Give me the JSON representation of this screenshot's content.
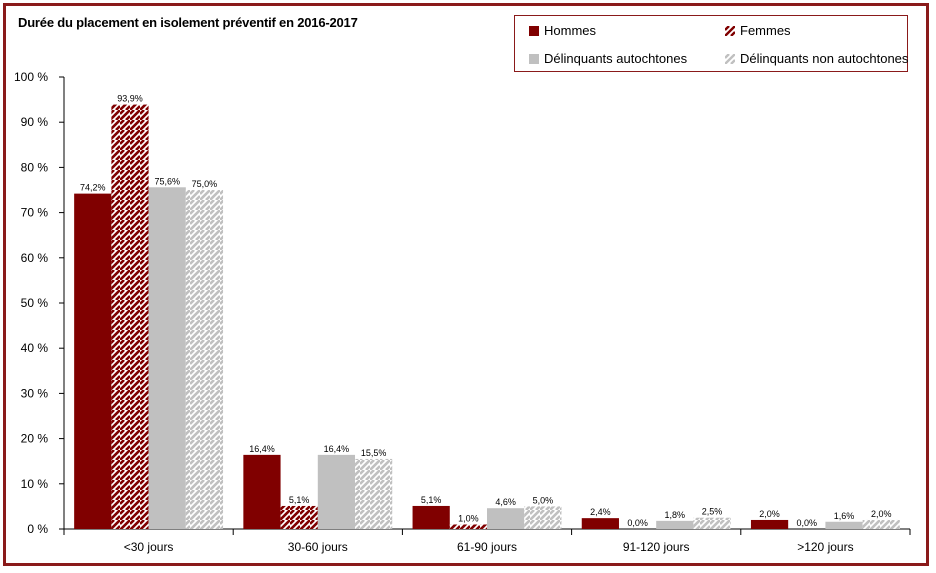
{
  "chart_data": {
    "type": "bar",
    "title": "Durée du placement en isolement préventif en 2016-2017",
    "categories": [
      "<30 jours",
      "30-60 jours",
      "61-90 jours",
      "91-120 jours",
      ">120 jours"
    ],
    "ylim": [
      0,
      100
    ],
    "yticks": [
      "0 %",
      "10 %",
      "20 %",
      "30 %",
      "40 %",
      "50 %",
      "60 %",
      "70 %",
      "80 %",
      "90 %",
      "100 %"
    ],
    "grid": false,
    "legend_position": "top-right",
    "series": [
      {
        "name": "Hommes",
        "values": [
          74.2,
          16.4,
          5.1,
          2.4,
          2.0
        ],
        "labels": [
          "74,2%",
          "16,4%",
          "5,1%",
          "2,4%",
          "2,0%"
        ],
        "color": "#800000",
        "pattern": "solid"
      },
      {
        "name": "Femmes",
        "values": [
          93.9,
          5.1,
          1.0,
          0.0,
          0.0
        ],
        "labels": [
          "93,9%",
          "5,1%",
          "1,0%",
          "0,0%",
          "0,0%"
        ],
        "color": "#800000",
        "pattern": "hatched"
      },
      {
        "name": "Délinquants autochtones",
        "values": [
          75.6,
          16.4,
          4.6,
          1.8,
          1.6
        ],
        "labels": [
          "75,6%",
          "16,4%",
          "4,6%",
          "1,8%",
          "1,6%"
        ],
        "color": "#c0c0c0",
        "pattern": "solid"
      },
      {
        "name": "Délinquants non autochtones",
        "values": [
          75.0,
          15.5,
          5.0,
          2.5,
          2.0
        ],
        "labels": [
          "75,0%",
          "15,5%",
          "5,0%",
          "2,5%",
          "2,0%"
        ],
        "color": "#c0c0c0",
        "pattern": "hatched"
      }
    ]
  }
}
